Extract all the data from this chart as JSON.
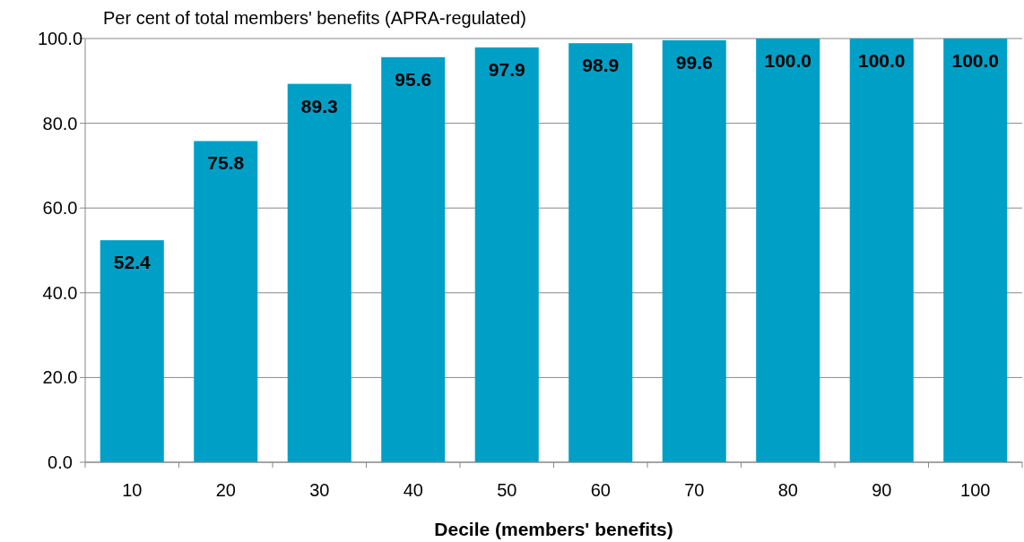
{
  "chart_data": {
    "type": "bar",
    "ylabel": "Per cent of total members' benefits (APRA-regulated)",
    "xlabel": "Decile (members' benefits)",
    "categories": [
      "10",
      "20",
      "30",
      "40",
      "50",
      "60",
      "70",
      "80",
      "90",
      "100"
    ],
    "values": [
      52.4,
      75.8,
      89.3,
      95.6,
      97.9,
      98.9,
      99.6,
      100.0,
      100.0,
      100.0
    ],
    "value_labels": [
      "52.4",
      "75.8",
      "89.3",
      "95.6",
      "97.9",
      "98.9",
      "99.6",
      "100.0",
      "100.0",
      "100.0"
    ],
    "color": "#009fc6",
    "ylim": [
      0,
      100
    ],
    "yticks": [
      {
        "value": 0,
        "label": "0.0"
      },
      {
        "value": 20,
        "label": "20.0"
      },
      {
        "value": 40,
        "label": "40.0"
      },
      {
        "value": 60,
        "label": "60.0"
      },
      {
        "value": 80,
        "label": "80.0"
      },
      {
        "value": 100,
        "label": "100.0"
      }
    ],
    "grid": "y"
  }
}
